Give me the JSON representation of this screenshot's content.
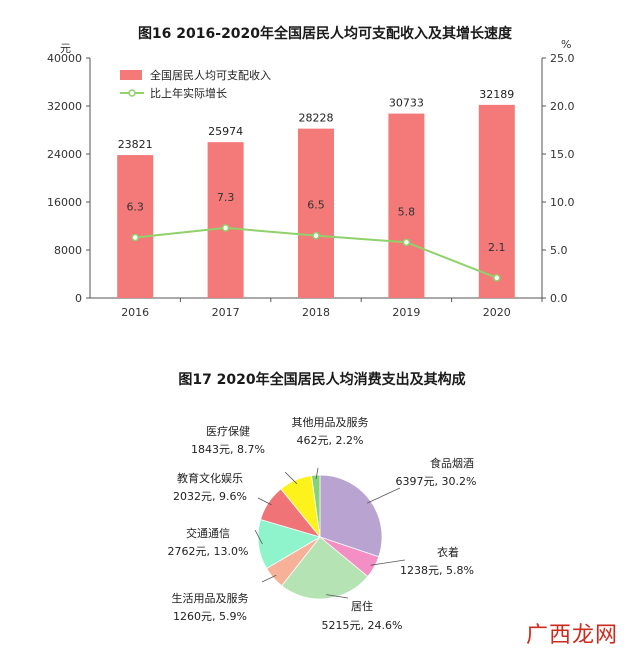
{
  "chart_data": [
    {
      "type": "bar",
      "title": "图16    2016-2020年全国居民人均可支配收入及其增长速度",
      "categories": [
        "2016",
        "2017",
        "2018",
        "2019",
        "2020"
      ],
      "series": [
        {
          "name": "全国居民人均可支配收入",
          "type": "bar",
          "values": [
            23821,
            25974,
            28228,
            30733,
            32189
          ],
          "color": "#f47a7a",
          "axis": "left"
        },
        {
          "name": "比上年实际增长",
          "type": "line",
          "values": [
            6.3,
            7.3,
            6.5,
            5.8,
            2.1
          ],
          "color": "#8fd16a",
          "axis": "right"
        }
      ],
      "ylabel_left": "元",
      "ylabel_right": "%",
      "ylim_left": [
        0,
        40000
      ],
      "ylim_right": [
        0,
        25
      ],
      "yticks_left": [
        "0",
        "8000",
        "16000",
        "24000",
        "32000",
        "40000"
      ],
      "yticks_right": [
        "0.0",
        "5.0",
        "10.0",
        "15.0",
        "20.0",
        "25.0"
      ],
      "bar_labels": [
        "23821",
        "25974",
        "28228",
        "30733",
        "32189"
      ],
      "line_labels": [
        "6.3",
        "7.3",
        "6.5",
        "5.8",
        "2.1"
      ],
      "legend_position": "top-left"
    },
    {
      "type": "pie",
      "title": "图17    2020年全国居民人均消费支出及其构成",
      "slices": [
        {
          "name": "食品烟酒",
          "value": 6397,
          "percent": 30.2,
          "label": "6397元, 30.2%",
          "color": "#b9a3d0"
        },
        {
          "name": "衣着",
          "value": 1238,
          "percent": 5.8,
          "label": "1238元, 5.8%",
          "color": "#f38fc4"
        },
        {
          "name": "居住",
          "value": 5215,
          "percent": 24.6,
          "label": "5215元, 24.6%",
          "color": "#b5e3b4"
        },
        {
          "name": "生活用品及服务",
          "value": 1260,
          "percent": 5.9,
          "label": "1260元, 5.9%",
          "color": "#f7b199"
        },
        {
          "name": "交通通信",
          "value": 2762,
          "percent": 13.0,
          "label": "2762元, 13.0%",
          "color": "#8ff3cc"
        },
        {
          "name": "教育文化娱乐",
          "value": 2032,
          "percent": 9.6,
          "label": "2032元, 9.6%",
          "color": "#f07378"
        },
        {
          "name": "医疗保健",
          "value": 1843,
          "percent": 8.7,
          "label": "1843元, 8.7%",
          "color": "#fdf21c"
        },
        {
          "name": "其他用品及服务",
          "value": 462,
          "percent": 2.2,
          "label": "462元, 2.2%",
          "color": "#86d27c"
        }
      ]
    }
  ],
  "watermark": "广西龙网"
}
